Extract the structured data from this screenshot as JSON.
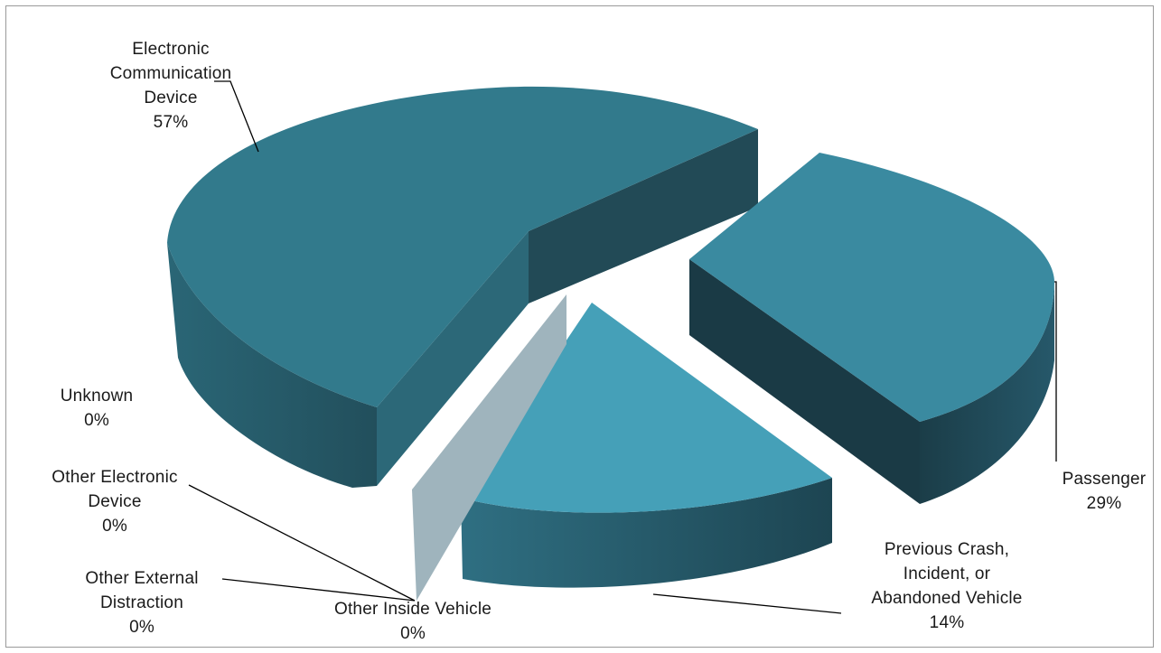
{
  "chart_data": {
    "type": "pie",
    "title": "",
    "legend": "none",
    "series": [
      {
        "values": [
          57,
          29,
          14,
          0,
          0,
          0,
          0
        ],
        "categories": [
          "Electronic Communication Device",
          "Passenger",
          "Previous Crash, Incident, or Abandoned Vehicle",
          "Other Inside Vehicle",
          "Other External Distraction",
          "Other Electronic Device",
          "Unknown"
        ]
      }
    ],
    "labels": [
      {
        "lines": [
          "Electronic",
          "Communication",
          "Device"
        ],
        "pct": "57%"
      },
      {
        "lines": [
          "Passenger"
        ],
        "pct": "29%"
      },
      {
        "lines": [
          "Previous Crash,",
          "Incident, or",
          "Abandoned Vehicle"
        ],
        "pct": "14%"
      },
      {
        "lines": [
          "Other Inside Vehicle"
        ],
        "pct": "0%"
      },
      {
        "lines": [
          "Other External",
          "Distraction"
        ],
        "pct": "0%"
      },
      {
        "lines": [
          "Other Electronic",
          "Device"
        ],
        "pct": "0%"
      },
      {
        "lines": [
          "Unknown"
        ],
        "pct": "0%"
      }
    ],
    "colors": {
      "Electronic Communication Device": "#327a8c",
      "Passenger": "#3a8aa0",
      "Previous Crash, Incident, or Abandoned Vehicle": "#45a0b8",
      "Other Inside Vehicle": "#9fb4bd"
    }
  }
}
